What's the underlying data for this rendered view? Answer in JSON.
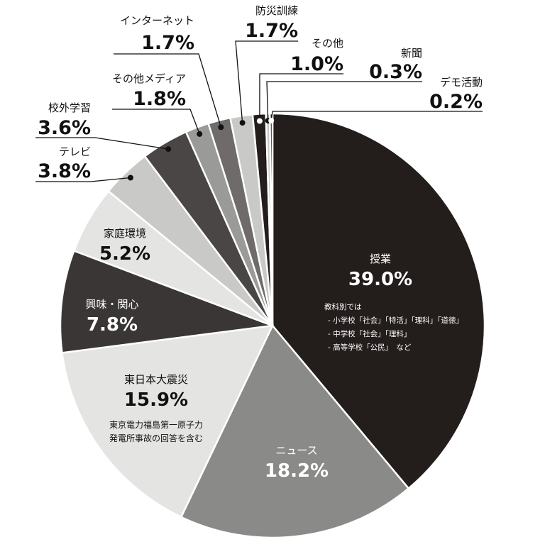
{
  "chart_data": {
    "type": "pie",
    "title": "",
    "slices": [
      {
        "label": "授業",
        "value": 39.0,
        "display": "39.0%",
        "color": "#231d1c"
      },
      {
        "label": "ニュース",
        "value": 18.2,
        "display": "18.2%",
        "color": "#8a8a89"
      },
      {
        "label": "東日本大震災",
        "value": 15.9,
        "display": "15.9%",
        "color": "#e4e4e3"
      },
      {
        "label": "興味・関心",
        "value": 7.8,
        "display": "7.8%",
        "color": "#3a3635"
      },
      {
        "label": "家庭環境",
        "value": 5.2,
        "display": "5.2%",
        "color": "#e4e4e3"
      },
      {
        "label": "テレビ",
        "value": 3.8,
        "display": "3.8%",
        "color": "#c9c9c8"
      },
      {
        "label": "校外学習",
        "value": 3.6,
        "display": "3.6%",
        "color": "#4a4646"
      },
      {
        "label": "その他メディア",
        "value": 1.8,
        "display": "1.8%",
        "color": "#9a9a99"
      },
      {
        "label": "インターネット",
        "value": 1.7,
        "display": "1.7%",
        "color": "#6e6b6a"
      },
      {
        "label": "防災訓練",
        "value": 1.7,
        "display": "1.7%",
        "color": "#c9c9c8"
      },
      {
        "label": "その他",
        "value": 1.0,
        "display": "1.0%",
        "color": "#231d1c"
      },
      {
        "label": "新聞",
        "value": 0.3,
        "display": "0.3%",
        "color": "#c9c9c8"
      },
      {
        "label": "デモ活動",
        "value": 0.2,
        "display": "0.2%",
        "color": "#231d1c"
      }
    ],
    "notes": {
      "授業": [
        "教科別では",
        "- 小学校「社会」「特活」「理科」「道徳」",
        "- 中学校「社会」「理科」",
        "- 高等学校「公民」　など"
      ],
      "東日本大震災": [
        "東京電力福島第一原子力",
        "発電所事故の回答を含む"
      ]
    }
  }
}
